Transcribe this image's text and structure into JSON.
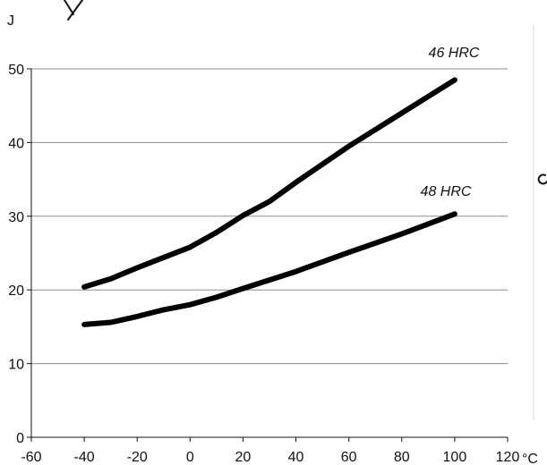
{
  "chart_data": {
    "type": "line",
    "title": "",
    "ylabel": "J",
    "xlabel": "°C",
    "xlim": [
      -60,
      120
    ],
    "ylim": [
      0,
      50
    ],
    "x_ticks": [
      -60,
      -40,
      -20,
      0,
      20,
      40,
      60,
      80,
      100,
      120
    ],
    "y_ticks": [
      0,
      10,
      20,
      30,
      40,
      50
    ],
    "grid": "horizontal",
    "legend": "none (series labelled directly on the lines)",
    "series": [
      {
        "name": "46 HRC",
        "color": "#000000",
        "points": [
          [
            -40,
            20.4
          ],
          [
            -30,
            21.5
          ],
          [
            -20,
            23.0
          ],
          [
            -10,
            24.4
          ],
          [
            0,
            25.8
          ],
          [
            10,
            27.8
          ],
          [
            20,
            30.1
          ],
          [
            30,
            32.0
          ],
          [
            40,
            34.6
          ],
          [
            60,
            39.5
          ],
          [
            80,
            44.0
          ],
          [
            100,
            48.5
          ]
        ]
      },
      {
        "name": "48 HRC",
        "color": "#000000",
        "points": [
          [
            -40,
            15.3
          ],
          [
            -30,
            15.6
          ],
          [
            -20,
            16.4
          ],
          [
            -10,
            17.3
          ],
          [
            0,
            18.0
          ],
          [
            10,
            19.0
          ],
          [
            20,
            20.2
          ],
          [
            40,
            22.5
          ],
          [
            60,
            25.1
          ],
          [
            80,
            27.6
          ],
          [
            100,
            30.3
          ]
        ]
      }
    ]
  }
}
